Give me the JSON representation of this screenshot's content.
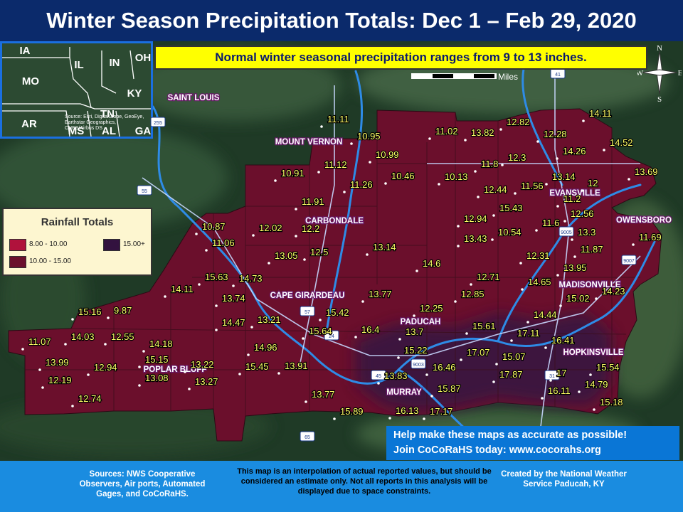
{
  "title": "Winter Season Precipitation Totals: Dec 1 – Feb 29, 2020",
  "note": "Normal winter seasonal precipitation ranges from 9 to 13 inches.",
  "scale_label": "Miles",
  "compass": {
    "n": "N",
    "s": "S",
    "e": "E",
    "w": "W"
  },
  "legend": {
    "title": "Rainfall Totals",
    "items": [
      {
        "label": "8.00 - 10.00",
        "color": "#b0123c"
      },
      {
        "label": "15.00+",
        "color": "#33123f"
      },
      {
        "label": "10.00 - 15.00",
        "color": "#6b0f2c"
      }
    ]
  },
  "inset": {
    "states": [
      "IA",
      "IL",
      "IN",
      "OH",
      "MO",
      "KY",
      "AR",
      "TN",
      "MS",
      "AL",
      "GA"
    ],
    "credit": "Source: Esri, DigitalGlobe, GeoEye, Earthstar Geographics, CNES/Airbus DS"
  },
  "cities": [
    "SAINT LOUIS",
    "MOUNT VERNON",
    "CARBONDALE",
    "CAPE GIRARDEAU",
    "POPLAR BLUFF",
    "PADUCAH",
    "MURRAY",
    "EVANSVILLE",
    "OWENSBORO",
    "MADISONVILLE",
    "HOPKINSVILLE"
  ],
  "highways": [
    "255",
    "55",
    "57",
    "24",
    "45",
    "9003",
    "9005",
    "9007",
    "41",
    "31",
    "65"
  ],
  "values": [
    "11.11",
    "10.95",
    "11.02",
    "13.82",
    "12.82",
    "14.11",
    "12.28",
    "14.26",
    "14.52",
    "13.69",
    "10.99",
    "11.12",
    "10.91",
    "11.26",
    "10.46",
    "10.13",
    "11.8",
    "12.3",
    "13.14",
    "12",
    "12.44",
    "11.56",
    "11.2",
    "11.91",
    "10.87",
    "12.02",
    "12.2",
    "12.94",
    "15.43",
    "12.56",
    "11.06",
    "13.05",
    "12.5",
    "13.14",
    "13.43",
    "10.54",
    "11.6",
    "13.3",
    "11.69",
    "11.87",
    "14.6",
    "12.31",
    "13.95",
    "15.63",
    "14.73",
    "14.11",
    "13.74",
    "13.77",
    "12.71",
    "12.85",
    "14.65",
    "14.23",
    "15.02",
    "15.16",
    "9.87",
    "14.47",
    "13.21",
    "15.42",
    "12.25",
    "14.44",
    "11.07",
    "14.03",
    "12.55",
    "15.64",
    "16.4",
    "13.7",
    "15.61",
    "17.11",
    "16.41",
    "14.18",
    "14.96",
    "15.22",
    "17.07",
    "15.07",
    "13.99",
    "15.15",
    "13.22",
    "12.94",
    "13.08",
    "13.27",
    "15.45",
    "13.91",
    "16.46",
    "17.87",
    "17",
    "15.54",
    "12.19",
    "13.83",
    "15.87",
    "16.11",
    "14.79",
    "12.74",
    "13.77",
    "15.89",
    "16.13",
    "17.17",
    "15.18"
  ],
  "cta": {
    "line1": "Help make these maps as accurate as possible!",
    "line2": "Join CoCoRaHS today: www.cocorahs.org"
  },
  "footer": {
    "sources": "Sources: NWS Cooperative Observers, Air ports, Automated Gages, and CoCoRaHS.",
    "disclaimer": "This map is an interpolation of actual reported values, but should be considered an estimate only. Not all reports in this analysis will be displayed due to space constraints.",
    "credit": "Created by the National Weather Service Paducah, KY"
  }
}
